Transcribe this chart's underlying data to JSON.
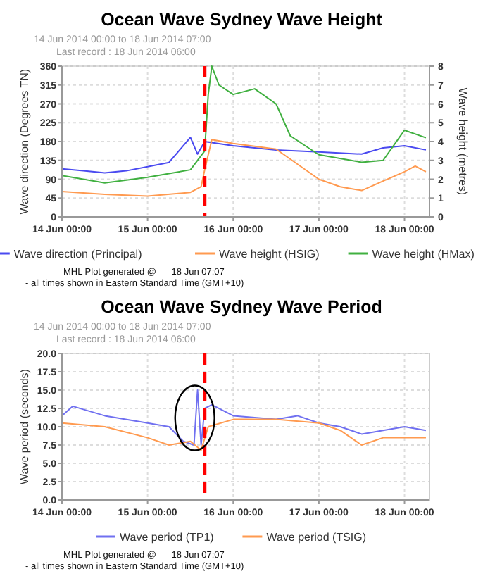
{
  "chart_data": [
    {
      "type": "line",
      "title": "Ocean Wave Sydney Wave Height",
      "subtitle": "14 Jun 2014 00:00 to 18 Jun 2014 07:00\nLast record : 18 Jun 2014 06:00",
      "ylabel": "Wave direction (Degrees TN)",
      "y2label": "Wave height (metres)",
      "xlim": [
        "2014-06-14T00:00",
        "2014-06-18T07:00"
      ],
      "xticks": [
        {
          "value": "2014-06-14T00:00",
          "label": "14 Jun 00:00"
        },
        {
          "value": "2014-06-15T00:00",
          "label": "15 Jun 00:00"
        },
        {
          "value": "2014-06-16T00:00",
          "label": "16 Jun 00:00"
        },
        {
          "value": "2014-06-17T00:00",
          "label": "17 Jun 00:00"
        },
        {
          "value": "2014-06-18T00:00",
          "label": "18 Jun 00:00"
        }
      ],
      "ylim": [
        0,
        360
      ],
      "yticks": [
        0,
        45,
        90,
        135,
        180,
        225,
        270,
        315,
        360
      ],
      "y2lim": [
        0,
        8
      ],
      "y2ticks": [
        0,
        1,
        2,
        3,
        4,
        5,
        6,
        7,
        8
      ],
      "grid": true,
      "legend": "bottom",
      "line_style": "solid",
      "marker": "none",
      "series": [
        {
          "name": "Wave direction (Principal)",
          "color": "#4a4af0",
          "x": [
            "2014-06-14T00:00",
            "2014-06-14T06:00",
            "2014-06-14T12:00",
            "2014-06-14T18:00",
            "2014-06-15T00:00",
            "2014-06-15T06:00",
            "2014-06-15T09:00",
            "2014-06-15T12:00",
            "2014-06-15T14:00",
            "2014-06-15T16:00",
            "2014-06-16T00:00",
            "2014-06-16T12:00",
            "2014-06-17T00:00",
            "2014-06-17T12:00",
            "2014-06-17T18:00",
            "2014-06-18T00:00",
            "2014-06-18T06:00"
          ],
          "values": [
            115,
            110,
            105,
            110,
            120,
            130,
            160,
            190,
            150,
            180,
            170,
            160,
            155,
            150,
            165,
            170,
            160
          ]
        },
        {
          "name": "Wave height (HSIG)",
          "color": "#ff9a50",
          "axis": "y2",
          "x": [
            "2014-06-14T00:00",
            "2014-06-14T12:00",
            "2014-06-15T00:00",
            "2014-06-15T12:00",
            "2014-06-15T15:00",
            "2014-06-15T16:00",
            "2014-06-15T18:00",
            "2014-06-16T00:00",
            "2014-06-16T12:00",
            "2014-06-17T00:00",
            "2014-06-17T06:00",
            "2014-06-17T12:00",
            "2014-06-17T18:00",
            "2014-06-18T00:00",
            "2014-06-18T03:00",
            "2014-06-18T06:00"
          ],
          "values": [
            1.35,
            1.2,
            1.1,
            1.3,
            1.6,
            2.5,
            4.1,
            3.9,
            3.6,
            2.0,
            1.6,
            1.4,
            1.9,
            2.4,
            2.7,
            2.4
          ]
        },
        {
          "name": "Wave height (HMax)",
          "color": "#40b040",
          "axis": "y2",
          "x": [
            "2014-06-14T00:00",
            "2014-06-14T12:00",
            "2014-06-15T00:00",
            "2014-06-15T12:00",
            "2014-06-15T16:00",
            "2014-06-15T17:00",
            "2014-06-15T18:00",
            "2014-06-15T20:00",
            "2014-06-16T00:00",
            "2014-06-16T06:00",
            "2014-06-16T12:00",
            "2014-06-16T16:00",
            "2014-06-17T00:00",
            "2014-06-17T12:00",
            "2014-06-17T18:00",
            "2014-06-18T00:00",
            "2014-06-18T06:00"
          ],
          "values": [
            2.2,
            1.8,
            2.1,
            2.5,
            3.5,
            6.5,
            8,
            7.0,
            6.5,
            6.8,
            6.0,
            4.3,
            3.3,
            2.9,
            3.0,
            4.6,
            4.2
          ]
        }
      ],
      "ref_lines": [
        {
          "axis": "x",
          "value": "2014-06-15T16:00",
          "color": "#ff0000",
          "line_style": "dashed"
        }
      ],
      "annotations": [
        "MHL Plot generated @      18 Jun 07:07",
        "- all times shown in Eastern Standard Time (GMT+10)"
      ]
    },
    {
      "type": "line",
      "title": "Ocean Wave Sydney Wave Period",
      "subtitle": "14 Jun 2014 00:00 to 18 Jun 2014 07:00\nLast record : 18 Jun 2014 06:00",
      "ylabel": "Wave period (seconds)",
      "xlim": [
        "2014-06-14T00:00",
        "2014-06-18T07:00"
      ],
      "xticks": [
        {
          "value": "2014-06-14T00:00",
          "label": "14 Jun 00:00"
        },
        {
          "value": "2014-06-15T00:00",
          "label": "15 Jun 00:00"
        },
        {
          "value": "2014-06-16T00:00",
          "label": "16 Jun 00:00"
        },
        {
          "value": "2014-06-17T00:00",
          "label": "17 Jun 00:00"
        },
        {
          "value": "2014-06-18T00:00",
          "label": "18 Jun 00:00"
        }
      ],
      "ylim": [
        0,
        20
      ],
      "yticks": [
        {
          "value": 0,
          "label": "0.0"
        },
        {
          "value": 2.5,
          "label": "2.5"
        },
        {
          "value": 5,
          "label": "5.0"
        },
        {
          "value": 7.5,
          "label": "7.5"
        },
        {
          "value": 10,
          "label": "10.0"
        },
        {
          "value": 12.5,
          "label": "12.5"
        },
        {
          "value": 15,
          "label": "15.0"
        },
        {
          "value": 17.5,
          "label": "17.5"
        },
        {
          "value": 20,
          "label": "20.0"
        }
      ],
      "grid": true,
      "legend": "bottom",
      "line_style": "solid",
      "marker": "none",
      "series": [
        {
          "name": "Wave period (TP1)",
          "color": "#7070f0",
          "x": [
            "2014-06-14T00:00",
            "2014-06-14T03:00",
            "2014-06-14T12:00",
            "2014-06-15T00:00",
            "2014-06-15T06:00",
            "2014-06-15T10:00",
            "2014-06-15T13:00",
            "2014-06-15T14:00",
            "2014-06-15T15:00",
            "2014-06-15T16:00",
            "2014-06-15T18:00",
            "2014-06-16T00:00",
            "2014-06-16T12:00",
            "2014-06-16T18:00",
            "2014-06-17T00:00",
            "2014-06-17T06:00",
            "2014-06-17T12:00",
            "2014-06-18T00:00",
            "2014-06-18T06:00"
          ],
          "values": [
            11.5,
            12.8,
            11.5,
            10.5,
            10.0,
            8.0,
            7.5,
            15.0,
            7.5,
            12.5,
            13.0,
            11.5,
            11.0,
            11.5,
            10.5,
            10.0,
            9.0,
            10.0,
            9.5
          ]
        },
        {
          "name": "Wave period (TSIG)",
          "color": "#ff9a50",
          "x": [
            "2014-06-14T00:00",
            "2014-06-14T12:00",
            "2014-06-15T00:00",
            "2014-06-15T06:00",
            "2014-06-15T12:00",
            "2014-06-15T15:00",
            "2014-06-15T17:00",
            "2014-06-16T00:00",
            "2014-06-16T12:00",
            "2014-06-17T00:00",
            "2014-06-17T06:00",
            "2014-06-17T12:00",
            "2014-06-17T18:00",
            "2014-06-18T00:00",
            "2014-06-18T06:00"
          ],
          "values": [
            10.5,
            10.0,
            8.5,
            7.5,
            8.0,
            6.8,
            10.0,
            11.0,
            11.0,
            10.5,
            9.5,
            7.5,
            8.5,
            8.5,
            8.5
          ]
        }
      ],
      "ref_lines": [
        {
          "axis": "x",
          "value": "2014-06-15T16:00",
          "color": "#ff0000",
          "line_style": "dashed"
        }
      ],
      "annotations": [
        "MHL Plot generated @      18 Jun 07:07",
        "- all times shown in Eastern Standard Time (GMT+10)"
      ]
    }
  ]
}
